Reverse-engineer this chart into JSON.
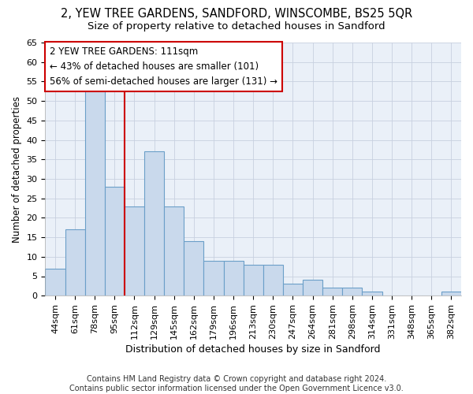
{
  "title": "2, YEW TREE GARDENS, SANDFORD, WINSCOMBE, BS25 5QR",
  "subtitle": "Size of property relative to detached houses in Sandford",
  "xlabel": "Distribution of detached houses by size in Sandford",
  "ylabel": "Number of detached properties",
  "categories": [
    "44sqm",
    "61sqm",
    "78sqm",
    "95sqm",
    "112sqm",
    "129sqm",
    "145sqm",
    "162sqm",
    "179sqm",
    "196sqm",
    "213sqm",
    "230sqm",
    "247sqm",
    "264sqm",
    "281sqm",
    "298sqm",
    "314sqm",
    "331sqm",
    "348sqm",
    "365sqm",
    "382sqm"
  ],
  "values": [
    7,
    17,
    53,
    28,
    23,
    37,
    23,
    14,
    9,
    9,
    8,
    8,
    3,
    4,
    2,
    2,
    1,
    0,
    0,
    0,
    1
  ],
  "bar_color": "#c9d9ec",
  "bar_edge_color": "#6b9fc8",
  "grid_color": "#c8d0e0",
  "bg_color": "#eaf0f8",
  "vline_x_index": 4,
  "vline_color": "#cc0000",
  "annotation_text": "2 YEW TREE GARDENS: 111sqm\n← 43% of detached houses are smaller (101)\n56% of semi-detached houses are larger (131) →",
  "annotation_box_color": "#ffffff",
  "annotation_box_edge": "#cc0000",
  "ylim": [
    0,
    65
  ],
  "yticks": [
    0,
    5,
    10,
    15,
    20,
    25,
    30,
    35,
    40,
    45,
    50,
    55,
    60,
    65
  ],
  "footer": "Contains HM Land Registry data © Crown copyright and database right 2024.\nContains public sector information licensed under the Open Government Licence v3.0.",
  "title_fontsize": 10.5,
  "subtitle_fontsize": 9.5,
  "xlabel_fontsize": 9,
  "ylabel_fontsize": 8.5,
  "tick_fontsize": 8,
  "annotation_fontsize": 8.5,
  "footer_fontsize": 7
}
